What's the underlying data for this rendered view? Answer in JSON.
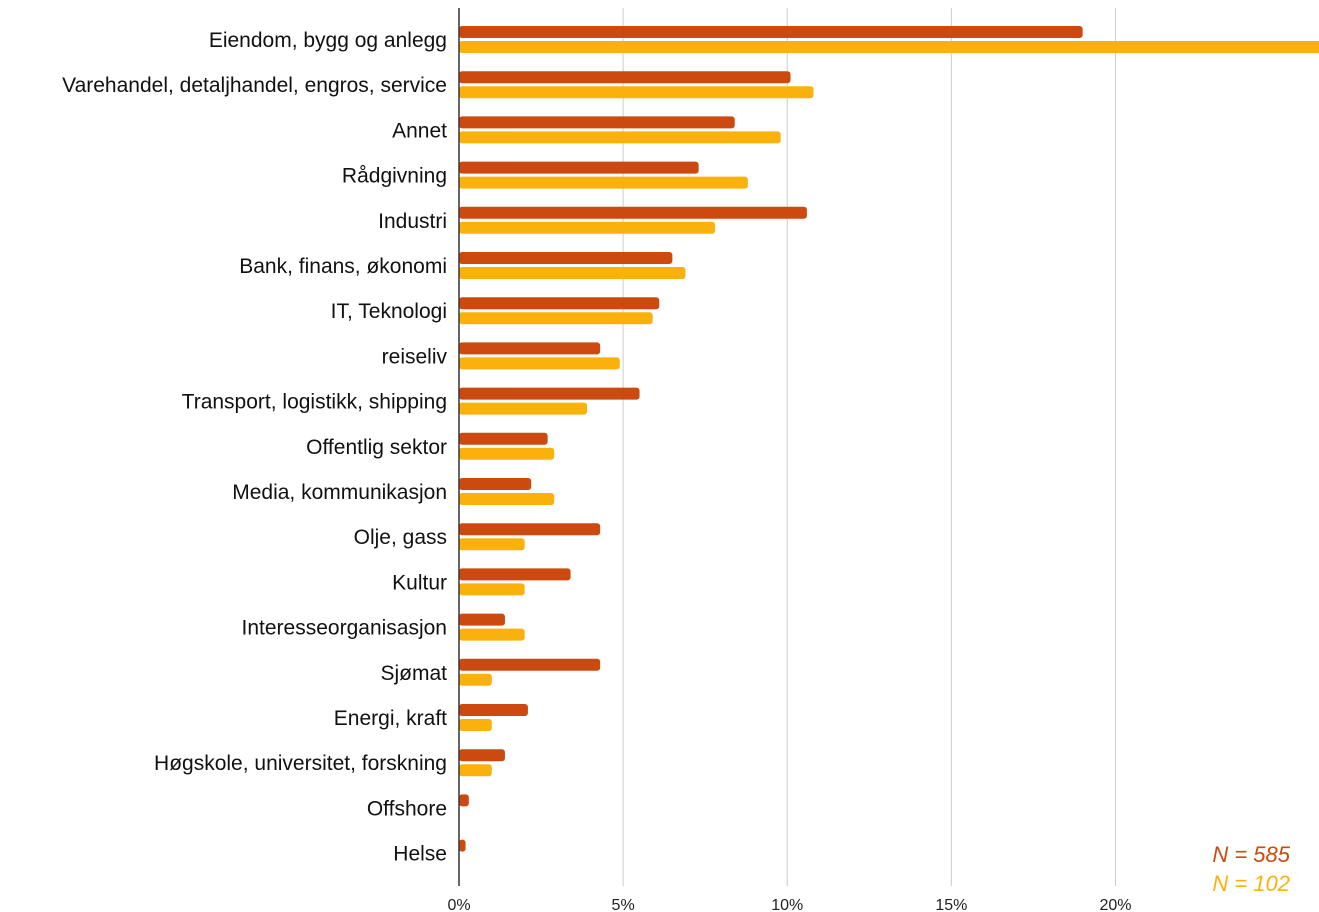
{
  "chart_data": {
    "type": "bar",
    "orientation": "horizontal",
    "categories": [
      "Eiendom, bygg og anlegg",
      "Varehandel, detaljhandel, engros, service",
      "Annet",
      "Rådgivning",
      "Industri",
      "Bank, finans, økonomi",
      "IT, Teknologi",
      "reiseliv",
      "Transport, logistikk, shipping",
      "Offentlig sektor",
      "Media, kommunikasjon",
      "Olje, gass",
      "Kultur",
      "Interesseorganisasjon",
      "Sjømat",
      "Energi, kraft",
      "Høgskole, universitet, forskning",
      "Offshore",
      "Helse"
    ],
    "series": [
      {
        "values": [
          19.0,
          10.1,
          8.4,
          7.3,
          10.6,
          6.5,
          6.1,
          4.3,
          5.5,
          2.7,
          2.2,
          4.3,
          3.4,
          1.4,
          4.3,
          2.1,
          1.4,
          0.3,
          0.2
        ],
        "color": "#cc4a0f"
      },
      {
        "values": [
          26.5,
          10.8,
          9.8,
          8.8,
          7.8,
          6.9,
          5.9,
          4.9,
          3.9,
          2.9,
          2.9,
          2.0,
          2.0,
          2.0,
          1.0,
          1.0,
          1.0,
          0.0,
          0.0
        ],
        "color": "#fbb10c"
      }
    ],
    "xlim": [
      0,
      26.2
    ],
    "x_ticks": [
      0,
      5,
      10,
      15,
      20
    ],
    "x_tick_labels": [
      "0%",
      "5%",
      "10%",
      "15%",
      "20%"
    ],
    "grid": true,
    "annotations": [
      {
        "text": "N = 585",
        "color": "#cc4a0f"
      },
      {
        "text": "N = 102",
        "color": "#fbb10c"
      }
    ],
    "title": "",
    "xlabel": "",
    "ylabel": ""
  }
}
